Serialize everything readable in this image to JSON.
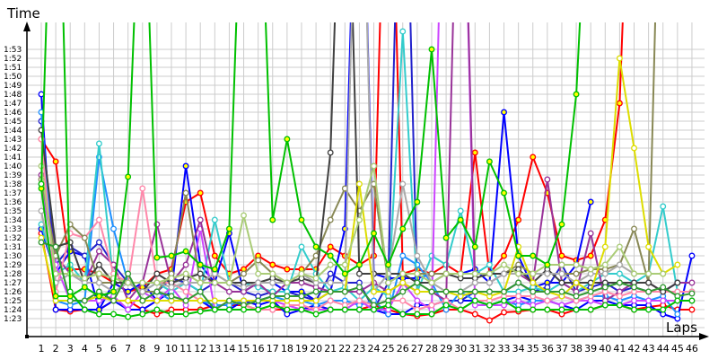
{
  "chart_data": {
    "type": "line",
    "ylabel": "Time",
    "xlabel": "Laps",
    "x": [
      1,
      2,
      3,
      4,
      5,
      6,
      7,
      8,
      9,
      10,
      11,
      12,
      13,
      14,
      15,
      16,
      17,
      18,
      19,
      20,
      21,
      22,
      23,
      24,
      25,
      26,
      27,
      28,
      29,
      30,
      31,
      32,
      33,
      34,
      35,
      36,
      37,
      38,
      39,
      40,
      41,
      42,
      43,
      44,
      45,
      46
    ],
    "y_ticks": [
      "1:23",
      "1:24",
      "1:25",
      "1:26",
      "1:27",
      "1:28",
      "1:29",
      "1:30",
      "1:31",
      "1:32",
      "1:33",
      "1:34",
      "1:35",
      "1:36",
      "1:37",
      "1:38",
      "1:39",
      "1:40",
      "1:41",
      "1:42",
      "1:43",
      "1:44",
      "1:45",
      "1:46",
      "1:47",
      "1:48",
      "1:49",
      "1:50",
      "1:51",
      "1:52",
      "1:53"
    ],
    "ylim": [
      "1:21",
      "1:56"
    ],
    "xlim": [
      1,
      46
    ],
    "grid": true,
    "legend": "none",
    "series": [
      {
        "color": "#ff0000",
        "marker_fill": "#ffff00",
        "values": [
          "1:43",
          "1:40.5",
          "1:28.5",
          "1:28.5",
          "1:28",
          "1:27",
          "1:26",
          "1:26.5",
          "1:28",
          "1:28.5",
          "1:36",
          "1:37",
          "1:30",
          "1:28",
          "1:28.5",
          "1:30",
          "1:29",
          "1:28.5",
          "1:28.5",
          "1:28.5",
          "1:31",
          "1:30",
          "1:29",
          "1:30",
          "2:30",
          "1:28",
          "1:28.5",
          "1:28",
          "1:29",
          "1:28",
          "1:41.5",
          "1:28",
          "1:30",
          "1:34",
          "1:41",
          "1:37",
          "1:30",
          "1:29.5",
          "1:30",
          "1:34",
          "1:47",
          "2:30",
          null,
          null,
          null,
          null
        ]
      },
      {
        "color": "#ff0000",
        "marker_fill": "#ffffff",
        "values": [
          "1:32.5",
          "1:24",
          "1:23.8",
          "1:24",
          "1:24",
          "1:25",
          "1:25",
          "1:24",
          "1:23.5",
          "1:24",
          "1:24",
          "1:24",
          "1:24.5",
          "1:24.5",
          "1:24.5",
          "1:24",
          "1:24",
          "1:24",
          "1:24",
          "1:24.5",
          "1:24",
          "1:24",
          "1:24",
          "1:24.5",
          "1:24",
          "1:23.5",
          "1:23.3",
          "1:23.5",
          "1:24",
          "1:24",
          "1:23.5",
          "1:22.8",
          "1:23.7",
          "1:23.8",
          "1:24",
          "1:24",
          "1:23.5",
          "1:24",
          "1:24",
          "1:24.5",
          "1:24.5",
          "1:24",
          "1:24.3",
          "1:24.5",
          "1:24",
          "1:24"
        ]
      },
      {
        "color": "#0000ff",
        "marker_fill": "#ffffff",
        "values": [
          "1:48",
          "1:24",
          "1:24",
          "1:24",
          "1:24",
          "1:25",
          "1:24",
          "1:24",
          "1:25",
          "1:25",
          "1:25",
          "1:25",
          "1:24",
          "1:24",
          "1:25",
          "1:24.5",
          "1:25",
          "1:23.5",
          "1:24",
          "1:24.5",
          "1:24",
          "1:24",
          "1:24",
          "1:24",
          "1:23.5",
          "1:23.5",
          "1:24.5",
          "1:24.5",
          "1:25",
          "1:25",
          "1:25",
          "1:24.5",
          "1:25",
          "1:25.5",
          "1:25",
          "1:25",
          "1:24.5",
          "1:24",
          "1:25",
          "1:25",
          "1:24.5",
          "1:24.5",
          "1:24.5",
          "1:23.5",
          "1:23",
          "1:30"
        ]
      },
      {
        "color": "#0000ff",
        "marker_fill": "#ffff00",
        "values": [
          "1:33",
          "1:28",
          "1:30.5",
          "1:30",
          "1:24",
          "1:27",
          "1:26",
          "1:27",
          "1:25",
          "1:26",
          "1:40",
          "1:29",
          "1:27",
          "1:32.5",
          "1:26",
          "1:27",
          "1:27",
          "1:26",
          "1:26",
          "1:25",
          "1:26",
          "1:33",
          "2:30",
          "1:28",
          "1:27.5",
          "1:27.5",
          "1:27.5",
          "1:28",
          "1:28",
          "1:28",
          "1:28.5",
          "1:27",
          "1:46",
          "1:30",
          "1:26.5",
          "1:27",
          "1:27",
          "1:29",
          "1:36",
          null,
          null,
          null,
          null,
          null,
          null,
          null
        ]
      },
      {
        "color": "#2222cc",
        "marker_fill": "#ffffff",
        "values": [
          "1:45",
          "1:29",
          "1:31",
          "1:30",
          "1:31.5",
          "1:29",
          "1:27",
          "1:26",
          "1:26",
          "1:27.5",
          "1:27",
          "1:26",
          "1:27",
          "1:27",
          "1:26",
          "1:25.5",
          "1:26",
          "1:26",
          "1:25.5",
          "1:25",
          "1:28",
          "1:27",
          "1:27",
          "1:24",
          "1:27",
          "2:30",
          "1:26",
          "1:26",
          "1:25",
          "1:25",
          "1:26",
          "1:26",
          "1:26",
          "1:27",
          "1:26",
          "1:26.5",
          "1:29",
          "1:26",
          "1:26.5",
          "1:27",
          "1:26",
          "1:26.5",
          "1:26",
          "1:26",
          "1:27",
          null
        ]
      },
      {
        "color": "#1e90ff",
        "marker_fill": "#ffffff",
        "values": [
          "1:46",
          "1:25",
          "1:24.5",
          "1:25",
          "1:41",
          "1:33",
          "1:27",
          "1:26",
          "1:26",
          "1:25",
          "1:25",
          "1:25",
          "1:24.5",
          "1:24.5",
          "1:25",
          "1:25",
          "1:25.5",
          "1:25",
          "1:25",
          "1:24.5",
          "1:25",
          "1:25",
          "1:24.5",
          "1:25",
          "1:23.5",
          "1:30",
          "1:29",
          "1:27",
          "1:24",
          "1:26",
          "1:25",
          "1:24.5",
          "1:25",
          "1:24.5",
          "1:25",
          "1:25",
          "1:25.5",
          "1:25",
          "1:25.5",
          "1:25.5",
          "1:25",
          "1:25.5",
          "1:25",
          "1:25.5",
          "1:23.5",
          null
        ]
      },
      {
        "color": "#33cccc",
        "marker_fill": "#ffffff",
        "values": [
          "1:33.5",
          "1:28",
          "1:29",
          "1:27",
          "1:42.5",
          "1:27",
          "1:27",
          "1:26",
          "1:27",
          "1:26",
          "1:27",
          "1:26",
          "1:34",
          "1:27",
          "1:27",
          "1:26.5",
          "1:26",
          "1:26",
          "1:31",
          "1:28",
          "1:26",
          "1:26.5",
          "1:25",
          "1:26.5",
          "1:25.5",
          "1:55",
          "1:26",
          "1:30",
          "1:29",
          "1:35",
          "1:28",
          "1:29",
          "1:26",
          "1:26",
          "1:26.5",
          "1:26",
          "1:27",
          "1:26",
          "1:27",
          "1:28",
          "1:28",
          "1:27",
          "1:28",
          "1:35.5",
          "1:26",
          "1:26"
        ]
      },
      {
        "color": "#cc44ff",
        "marker_fill": "#ffffff",
        "values": [
          "1:38",
          "1:29",
          "1:25",
          "1:25",
          "1:25",
          "1:25.5",
          "1:24",
          "1:26",
          "1:25",
          "1:26.5",
          "1:24.5",
          "1:33",
          "1:24",
          "1:25",
          "1:24.5",
          "1:25",
          "1:25",
          "1:24.5",
          "1:24",
          "1:24",
          "1:24",
          "1:24",
          "1:25",
          "1:24",
          "1:24",
          "1:27",
          "1:25",
          "1:24",
          "2:30",
          "2:30",
          "1:24.5",
          "1:24.5",
          "1:24.5",
          "1:25",
          "1:24.5",
          "1:25",
          "1:24.5",
          "1:25",
          "1:25",
          "1:24.5",
          "1:24.5",
          "1:25",
          "1:25",
          "1:25",
          "1:25",
          "1:25"
        ]
      },
      {
        "color": "#993399",
        "marker_fill": "#ffffff",
        "values": [
          "1:39",
          "1:30",
          "1:28",
          "1:27",
          "1:30.5",
          "1:29",
          "1:25",
          "1:27",
          "1:33.5",
          "1:27",
          "1:29",
          "1:34",
          "1:27",
          "1:26",
          "1:26",
          "1:27",
          "1:25.5",
          "1:27",
          "1:27",
          "1:26.5",
          "1:26",
          "1:26",
          "1:26",
          "1:27",
          "1:26",
          "1:27",
          "1:26",
          "1:26",
          "1:25",
          "2:30",
          "1:27",
          "1:27",
          "1:28",
          "1:28",
          "1:27",
          "1:38.5",
          "1:27",
          "1:26",
          "1:32.5",
          "1:25",
          "1:26",
          "1:27",
          "1:27",
          "1:26",
          "1:27",
          "1:27"
        ]
      },
      {
        "color": "#ff88aa",
        "marker_fill": "#ffffff",
        "values": [
          "1:43",
          "1:26",
          "1:32.5",
          "1:32",
          "1:34",
          "1:28",
          "1:27",
          "1:37.5",
          "1:27",
          "1:27",
          "1:26",
          "1:25",
          "1:25",
          "1:25",
          "1:24.5",
          "1:24",
          "1:24",
          "1:24.5",
          "1:24.5",
          "1:24",
          "1:25",
          "1:24.5",
          "1:25",
          "1:24.5",
          "1:25",
          "1:25",
          "1:24",
          "1:24.5",
          "1:25",
          "1:24",
          "1:25",
          "1:25",
          "1:25.5",
          "1:25.5",
          "1:25.5",
          "1:25",
          "1:25.5",
          "1:25",
          "1:25.5",
          "1:26",
          "1:25.5",
          "1:26",
          "1:26",
          "1:26",
          "1:26",
          "1:26"
        ]
      },
      {
        "color": "#888855",
        "marker_fill": "#ffffff",
        "values": [
          "1:38.5",
          "1:30",
          "1:33.5",
          "1:32",
          "1:27",
          "1:27",
          "1:27",
          "1:26",
          "1:26",
          "1:28",
          "1:37",
          "1:27",
          "1:28",
          "1:27",
          "1:28",
          "1:29.5",
          "1:28",
          "1:27",
          "1:28",
          "1:30",
          "1:34",
          "1:37.5",
          "1:35",
          "1:38",
          "1:27",
          "1:28",
          "1:28",
          "1:28",
          "1:28",
          "1:28",
          "1:28",
          "1:28",
          "1:28",
          "1:29",
          "1:28",
          "1:28",
          "1:28",
          "1:28",
          "1:28.5",
          "1:28.5",
          "1:29",
          "1:33",
          "1:27",
          "2:30",
          null,
          null
        ]
      },
      {
        "color": "#404040",
        "marker_fill": "#ffffff",
        "values": [
          "1:44",
          "1:31",
          "1:31.5",
          "1:27",
          "1:29",
          "1:27",
          "1:27",
          "1:26",
          "1:28",
          "1:27",
          "1:27.5",
          "1:28",
          "1:27",
          "1:27",
          "1:27",
          "1:27",
          "1:27.5",
          "1:27",
          "1:27.5",
          "1:27",
          "1:41.5",
          "2:30",
          "1:28",
          "1:28",
          "1:28",
          "1:28",
          "1:27",
          "1:27",
          "1:28",
          "1:27.5",
          "1:27.5",
          "1:28",
          "1:28",
          "1:28.5",
          "1:27",
          "1:28.5",
          "1:27",
          "1:27",
          "1:27",
          "1:27",
          "1:27",
          "1:27",
          "1:27",
          "1:26",
          "1:27",
          null
        ]
      },
      {
        "color": "#aaaaaa",
        "marker_fill": "#ffffff",
        "values": [
          "1:35",
          "1:27",
          "1:28",
          "1:27",
          "1:27",
          "1:26",
          "1:27",
          "1:26",
          "1:27",
          "1:26.5",
          "1:27",
          "1:27",
          "1:28",
          "1:27",
          "1:26.5",
          "1:27",
          "1:27",
          "1:27",
          "1:28",
          "1:27",
          "1:27",
          "1:27",
          "2:30",
          "1:26",
          "1:28",
          "1:38",
          "1:30",
          "1:27",
          "1:26",
          "1:26",
          "1:27",
          "1:27",
          "1:28",
          "1:28",
          "1:28",
          "1:28",
          "1:28",
          "1:27",
          "1:28",
          "1:28",
          "1:29",
          "1:28",
          "1:28",
          "1:28",
          null,
          null
        ]
      },
      {
        "color": "#dddd00",
        "marker_fill": "#ffffff",
        "values": [
          "1:32",
          "1:25",
          "1:25",
          "1:25",
          "1:25.5",
          "1:25",
          "1:25",
          "1:25",
          "1:25",
          "1:25",
          "1:25",
          "1:25",
          "1:25",
          "1:25",
          "1:25",
          "1:25",
          "1:25",
          "1:25",
          "1:25",
          "1:25",
          "1:26",
          "1:26",
          "1:38",
          "1:26",
          "1:26",
          "1:27",
          "1:26",
          "1:26",
          "1:26",
          "1:25.5",
          "1:26",
          "1:25.5",
          "1:26",
          "1:31",
          "1:27",
          "1:26",
          "1:25.5",
          "1:27",
          "1:26",
          "1:31",
          "1:52",
          "1:42",
          "1:31",
          "1:28",
          "1:29",
          null
        ]
      },
      {
        "color": "#aacc77",
        "marker_fill": "#ffffff",
        "values": [
          "1:40",
          "1:28",
          "1:28",
          "1:27.5",
          "1:28",
          "1:27.5",
          "1:27",
          "1:27",
          "1:27",
          "1:27.5",
          "1:28",
          "1:27",
          "1:27",
          "1:27",
          "1:34.5",
          "1:28",
          "1:28",
          "1:27",
          "1:28",
          "1:27.5",
          "1:29",
          "1:29",
          "1:34",
          "1:40",
          "1:27",
          "1:28",
          "1:28",
          "1:27",
          "1:28",
          "1:28",
          "1:28",
          "1:28",
          "1:29",
          "1:28",
          "1:28",
          "1:29",
          "1:29",
          "1:29",
          "1:28.5",
          "1:29",
          "1:31",
          "1:28",
          "1:28",
          "1:28",
          null,
          null
        ]
      },
      {
        "color": "#339933",
        "marker_fill": "#ffffff",
        "values": [
          "1:31.5",
          "1:31",
          "1:25",
          "1:25",
          "1:26",
          "1:25",
          "1:28",
          "1:25",
          "1:26",
          "1:25.5",
          "1:25",
          "1:26",
          "1:24",
          "1:25",
          "1:24.5",
          "1:25",
          "1:25.5",
          "1:25.5",
          "1:25.5",
          "1:26",
          "1:26",
          "1:26",
          "1:26.5",
          "1:24.5",
          "1:25",
          "1:26",
          "1:27",
          "1:26",
          "1:26",
          "1:26",
          "1:26",
          "1:26",
          "1:26",
          "1:27",
          "1:26",
          "1:26",
          "1:26",
          "1:25.5",
          "1:26",
          "1:26.5",
          "1:27",
          "1:26.5",
          "1:26",
          "1:26.5",
          "1:25.5",
          "1:25.8"
        ]
      },
      {
        "color": "#00c000",
        "marker_fill": "#ffff00",
        "values": [
          "1:37.5",
          "1:25.5",
          "1:25.5",
          "1:26.5",
          "1:25.5",
          "1:26",
          "1:38.8",
          "2:20",
          "1:29.8",
          "1:30",
          "1:30.5",
          "1:29",
          "1:28.5",
          "1:33",
          "2:20",
          "2:20",
          "1:34",
          "1:43",
          "1:34",
          "1:31",
          "1:30",
          "1:28",
          "1:29",
          "1:32.5",
          "1:29",
          "1:33",
          "1:36",
          "1:53",
          "1:32",
          "1:34",
          "1:31",
          "1:40.5",
          "1:37",
          "1:30",
          "1:30",
          "1:29",
          "1:33.5",
          "1:48",
          "2:20",
          null,
          null,
          null,
          null,
          null,
          null,
          null
        ]
      },
      {
        "color": "#00c000",
        "marker_fill": "#ffffff",
        "values": [
          "1:38",
          "2:30",
          "1:26",
          "1:24",
          "1:23.5",
          "1:23.5",
          "1:23.2",
          "1:23.5",
          "1:24",
          "1:23.5",
          "1:23.5",
          "1:23.8",
          "1:24",
          "1:24",
          "1:24",
          "1:24",
          "1:24.5",
          "1:24",
          "1:24",
          "1:23.5",
          "1:24",
          "1:24",
          "1:24",
          "1:24",
          "1:24.5",
          "1:23.5",
          "1:23.5",
          "1:23.5",
          "1:24.5",
          "1:24",
          "1:25",
          "1:24.5",
          "1:25",
          "1:24",
          "1:24",
          "1:24",
          "1:24",
          "1:24",
          "1:24",
          "1:24.5",
          "1:24.5",
          "1:24",
          "1:24",
          "1:24",
          "1:25",
          "1:25"
        ]
      }
    ]
  }
}
